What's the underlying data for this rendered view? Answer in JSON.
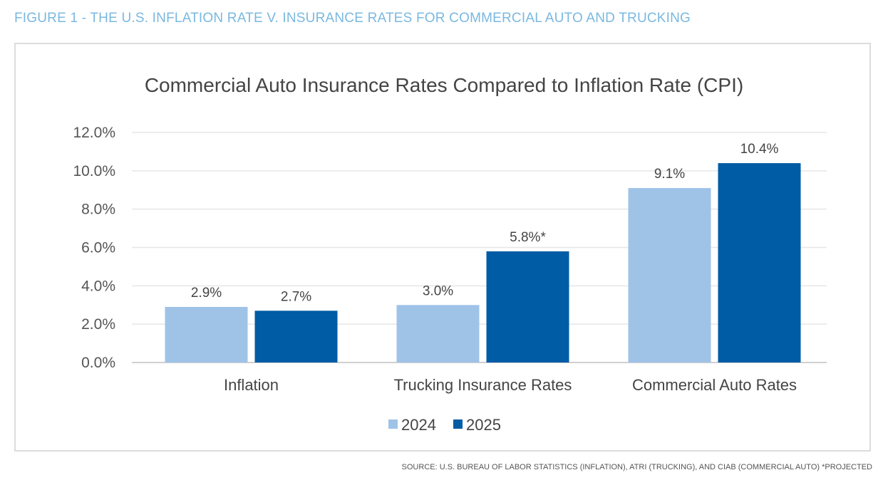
{
  "figure_title": "FIGURE 1 - THE U.S. INFLATION RATE V. INSURANCE RATES FOR COMMERCIAL AUTO AND TRUCKING",
  "source": "SOURCE: U.S. BUREAU OF LABOR STATISTICS (INFLATION), ATRI (TRUCKING), AND CIAB (COMMERCIAL AUTO) *PROJECTED",
  "chart_data": {
    "type": "bar",
    "title": "Commercial Auto Insurance Rates Compared to Inflation Rate (CPI)",
    "categories": [
      "Inflation",
      "Trucking Insurance Rates",
      "Commercial Auto Rates"
    ],
    "series": [
      {
        "name": "2024",
        "values": [
          2.9,
          3.0,
          9.1
        ],
        "labels": [
          "2.9%",
          "3.0%",
          "9.1%"
        ],
        "color": "#9fc3e7"
      },
      {
        "name": "2025",
        "values": [
          2.7,
          5.8,
          10.4
        ],
        "labels": [
          "2.7%",
          "5.8%*",
          "10.4%"
        ],
        "color": "#005ca4"
      }
    ],
    "yticks": [
      "0.0%",
      "2.0%",
      "4.0%",
      "6.0%",
      "8.0%",
      "10.0%",
      "12.0%"
    ],
    "ylim": [
      0,
      12
    ],
    "grid": true,
    "legend": "bottom-center"
  }
}
